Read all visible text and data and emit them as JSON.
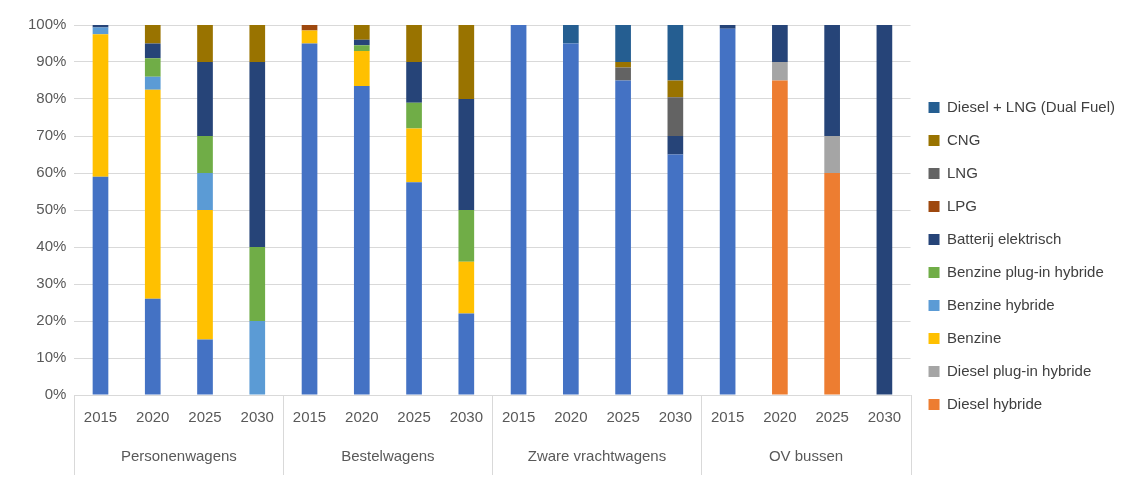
{
  "chart_data": {
    "type": "bar",
    "stacked": true,
    "grid": "y",
    "legend": "right",
    "categories": [
      "2015",
      "2020",
      "2025",
      "2030",
      "2015",
      "2020",
      "2025",
      "2030",
      "2015",
      "2020",
      "2025",
      "2030",
      "2015",
      "2020",
      "2025",
      "2030"
    ],
    "annotations": [
      "Personenwagens",
      "Bestelwagens",
      "Zware vrachtwagens",
      "OV bussen"
    ],
    "ylim": [
      0,
      100
    ],
    "yticks": [
      {
        "value": 0,
        "label": "0%"
      },
      {
        "value": 10,
        "label": "10%"
      },
      {
        "value": 20,
        "label": "20%"
      },
      {
        "value": 30,
        "label": "30%"
      },
      {
        "value": 40,
        "label": "40%"
      },
      {
        "value": 50,
        "label": "50%"
      },
      {
        "value": 60,
        "label": "60%"
      },
      {
        "value": 70,
        "label": "70%"
      },
      {
        "value": 80,
        "label": "80%"
      },
      {
        "value": 90,
        "label": "90%"
      },
      {
        "value": 100,
        "label": "100%"
      }
    ],
    "series": [
      {
        "color": "#4472c4",
        "values": [
          59,
          26,
          15,
          0,
          95,
          83.5,
          57.5,
          22,
          100,
          95,
          85,
          65,
          99,
          0,
          0,
          0
        ]
      },
      {
        "name": "Diesel hybride",
        "color": "#ed7d31",
        "values": [
          0,
          0,
          0,
          0,
          0,
          0,
          0,
          0,
          0,
          0,
          0,
          0,
          0,
          85,
          60,
          0
        ]
      },
      {
        "name": "Diesel plug-in hybride",
        "color": "#a5a5a5",
        "values": [
          0,
          0,
          0,
          0,
          0,
          0,
          0,
          0,
          0,
          0,
          0,
          0,
          0,
          5,
          10,
          0
        ]
      },
      {
        "name": "Benzine",
        "color": "#ffc000",
        "values": [
          38.5,
          56.5,
          35,
          0,
          3.5,
          9.5,
          14.5,
          14,
          0,
          0,
          0,
          0,
          0,
          0,
          0,
          0
        ]
      },
      {
        "name": "Benzine hybride",
        "color": "#5b9bd5",
        "values": [
          1.8,
          3.5,
          10,
          20,
          0,
          0,
          0,
          0,
          0,
          0,
          0,
          0,
          0,
          0,
          0,
          0
        ]
      },
      {
        "name": "Benzine plug-in hybride",
        "color": "#70ad47",
        "values": [
          0,
          5,
          10,
          20,
          0,
          1.5,
          7,
          14,
          0,
          0,
          0,
          0,
          0,
          0,
          0,
          0
        ]
      },
      {
        "name": "Batterij elektrisch",
        "color": "#264478",
        "values": [
          0.7,
          4,
          20,
          50,
          0,
          1.5,
          11,
          30,
          0,
          0,
          0,
          5,
          1,
          10,
          30,
          100
        ]
      },
      {
        "name": "LPG",
        "color": "#9e480e",
        "values": [
          0,
          0,
          0,
          0,
          1.5,
          0,
          0,
          0,
          0,
          0,
          0,
          0,
          0,
          0,
          0,
          0
        ]
      },
      {
        "name": "LNG",
        "color": "#636363",
        "values": [
          0,
          0,
          0,
          0,
          0,
          0,
          0,
          0,
          0,
          0,
          3.5,
          10.5,
          0,
          0,
          0,
          0
        ]
      },
      {
        "name": "CNG",
        "color": "#997300",
        "values": [
          0,
          5,
          10,
          10,
          0,
          4,
          10,
          20,
          0,
          0,
          1.5,
          4.5,
          0,
          0,
          0,
          0
        ]
      },
      {
        "name": "Diesel + LNG (Dual Fuel)",
        "color": "#255e91",
        "values": [
          0,
          0,
          0,
          0,
          0,
          0,
          0,
          0,
          0,
          5,
          10,
          15,
          0,
          0,
          0,
          0
        ]
      }
    ]
  }
}
